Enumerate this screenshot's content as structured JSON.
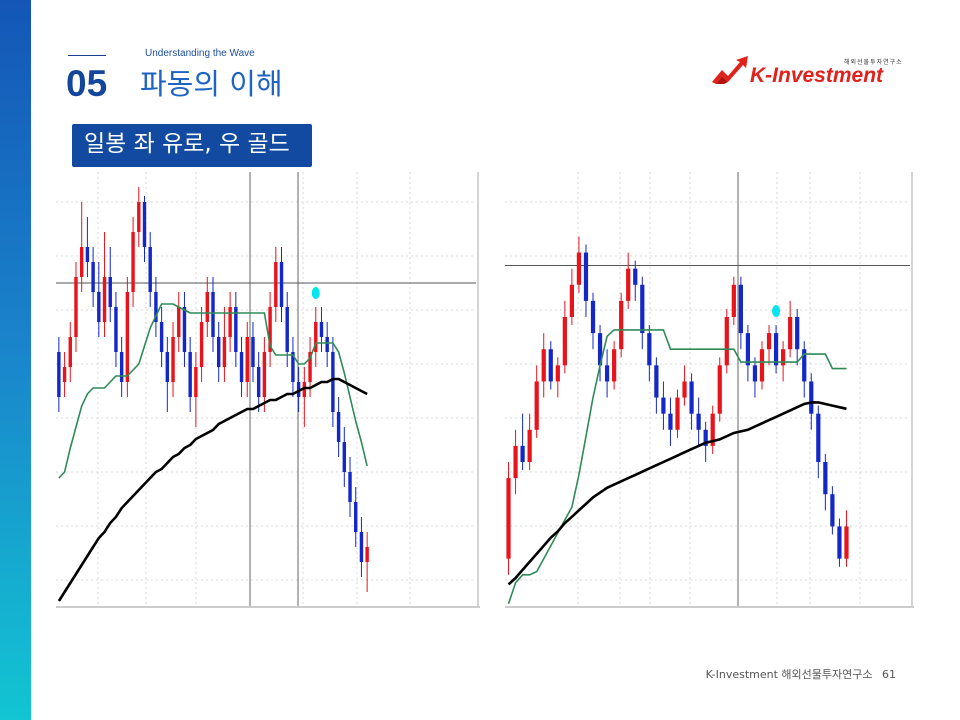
{
  "header": {
    "number": "05",
    "subtitle": "Understanding the Wave",
    "title": "파동의 이해"
  },
  "logo": {
    "tagline": "해외선물투자연구소",
    "name": "K-Investment",
    "color": "#e1211b"
  },
  "banner": {
    "text": "일봉 좌 유로, 우 골드",
    "color": "#114aa0"
  },
  "footer": {
    "org": "K-Investment 해외선물투자연구소",
    "page": "61"
  },
  "colors": {
    "bull": "#e8141c",
    "bear": "#1428c8",
    "green_line": "#2e8b57",
    "black_line": "#000000",
    "marker": "#00e5ee",
    "accent": "#114aa0"
  },
  "chart_data": [
    {
      "type": "candlestick",
      "ylim": [
        1.125,
        1.27
      ],
      "y_ticks": [
        1.26,
        1.24,
        1.22,
        1.2,
        1.18,
        1.16,
        1.14,
        1.12
      ],
      "hline": 1.233,
      "candles": [
        [
          1.21,
          1.195,
          1.215,
          1.19
        ],
        [
          1.2,
          1.205,
          1.21,
          1.195
        ],
        [
          1.205,
          1.215,
          1.22,
          1.2
        ],
        [
          1.215,
          1.235,
          1.24,
          1.21
        ],
        [
          1.235,
          1.245,
          1.26,
          1.23
        ],
        [
          1.245,
          1.24,
          1.255,
          1.235
        ],
        [
          1.24,
          1.23,
          1.245,
          1.225
        ],
        [
          1.23,
          1.22,
          1.24,
          1.215
        ],
        [
          1.22,
          1.235,
          1.25,
          1.215
        ],
        [
          1.235,
          1.225,
          1.245,
          1.22
        ],
        [
          1.225,
          1.21,
          1.23,
          1.205
        ],
        [
          1.21,
          1.2,
          1.215,
          1.195
        ],
        [
          1.2,
          1.23,
          1.235,
          1.195
        ],
        [
          1.23,
          1.25,
          1.255,
          1.225
        ],
        [
          1.25,
          1.26,
          1.265,
          1.245
        ],
        [
          1.26,
          1.245,
          1.262,
          1.24
        ],
        [
          1.245,
          1.23,
          1.25,
          1.225
        ],
        [
          1.23,
          1.22,
          1.235,
          1.215
        ],
        [
          1.22,
          1.21,
          1.225,
          1.205
        ],
        [
          1.21,
          1.2,
          1.215,
          1.19
        ],
        [
          1.2,
          1.215,
          1.22,
          1.195
        ],
        [
          1.215,
          1.225,
          1.23,
          1.21
        ],
        [
          1.225,
          1.21,
          1.23,
          1.205
        ],
        [
          1.21,
          1.195,
          1.215,
          1.19
        ],
        [
          1.195,
          1.205,
          1.21,
          1.185
        ],
        [
          1.205,
          1.22,
          1.225,
          1.2
        ],
        [
          1.22,
          1.23,
          1.235,
          1.215
        ],
        [
          1.23,
          1.215,
          1.235,
          1.21
        ],
        [
          1.215,
          1.205,
          1.22,
          1.2
        ],
        [
          1.205,
          1.215,
          1.225,
          1.2
        ],
        [
          1.215,
          1.225,
          1.23,
          1.21
        ],
        [
          1.225,
          1.21,
          1.23,
          1.205
        ],
        [
          1.21,
          1.2,
          1.215,
          1.195
        ],
        [
          1.2,
          1.215,
          1.22,
          1.195
        ],
        [
          1.215,
          1.205,
          1.22,
          1.2
        ],
        [
          1.205,
          1.195,
          1.21,
          1.19
        ],
        [
          1.195,
          1.21,
          1.215,
          1.19
        ],
        [
          1.21,
          1.225,
          1.23,
          1.205
        ],
        [
          1.225,
          1.24,
          1.245,
          1.22
        ],
        [
          1.24,
          1.225,
          1.245,
          1.22
        ],
        [
          1.225,
          1.21,
          1.23,
          1.205
        ],
        [
          1.21,
          1.2,
          1.215,
          1.195
        ],
        [
          1.2,
          1.195,
          1.205,
          1.19
        ],
        [
          1.195,
          1.2,
          1.205,
          1.185
        ],
        [
          1.2,
          1.21,
          1.215,
          1.195
        ],
        [
          1.21,
          1.22,
          1.225,
          1.205
        ],
        [
          1.22,
          1.215,
          1.225,
          1.21
        ],
        [
          1.215,
          1.21,
          1.22,
          1.205
        ],
        [
          1.21,
          1.19,
          1.215,
          1.185
        ],
        [
          1.19,
          1.18,
          1.195,
          1.175
        ],
        [
          1.18,
          1.17,
          1.185,
          1.165
        ],
        [
          1.17,
          1.16,
          1.175,
          1.155
        ],
        [
          1.16,
          1.15,
          1.165,
          1.145
        ],
        [
          1.15,
          1.14,
          1.155,
          1.135
        ],
        [
          1.14,
          1.145,
          1.15,
          1.13
        ]
      ],
      "green_line": [
        1.168,
        1.17,
        1.178,
        1.185,
        1.192,
        1.196,
        1.198,
        1.198,
        1.198,
        1.2,
        1.202,
        1.202,
        1.202,
        1.204,
        1.206,
        1.212,
        1.218,
        1.222,
        1.226,
        1.226,
        1.226,
        1.225,
        1.224,
        1.223,
        1.223,
        1.223,
        1.223,
        1.223,
        1.223,
        1.223,
        1.223,
        1.223,
        1.223,
        1.223,
        1.223,
        1.223,
        1.223,
        1.212,
        1.209,
        1.209,
        1.209,
        1.209,
        1.206,
        1.206,
        1.208,
        1.213,
        1.213,
        1.213,
        1.213,
        1.21,
        1.203,
        1.195,
        1.187,
        1.18,
        1.172
      ],
      "black_line": [
        1.127,
        1.13,
        1.133,
        1.136,
        1.139,
        1.142,
        1.145,
        1.148,
        1.15,
        1.153,
        1.155,
        1.158,
        1.16,
        1.162,
        1.164,
        1.166,
        1.168,
        1.17,
        1.171,
        1.173,
        1.175,
        1.176,
        1.178,
        1.179,
        1.181,
        1.182,
        1.183,
        1.184,
        1.186,
        1.187,
        1.188,
        1.189,
        1.19,
        1.191,
        1.191,
        1.192,
        1.193,
        1.194,
        1.194,
        1.195,
        1.196,
        1.196,
        1.197,
        1.198,
        1.198,
        1.199,
        1.2,
        1.2,
        1.201,
        1.201,
        1.2,
        1.199,
        1.198,
        1.197,
        1.196
      ]
    },
    {
      "type": "candlestick",
      "ylim": [
        1150,
        1420
      ],
      "hline": 1362,
      "candles": [
        [
          1180,
          1230,
          1240,
          1170
        ],
        [
          1230,
          1250,
          1260,
          1220
        ],
        [
          1250,
          1240,
          1270,
          1235
        ],
        [
          1240,
          1260,
          1270,
          1235
        ],
        [
          1260,
          1290,
          1300,
          1255
        ],
        [
          1290,
          1310,
          1320,
          1280
        ],
        [
          1310,
          1290,
          1315,
          1285
        ],
        [
          1290,
          1300,
          1305,
          1280
        ],
        [
          1300,
          1330,
          1340,
          1295
        ],
        [
          1330,
          1350,
          1360,
          1325
        ],
        [
          1350,
          1370,
          1380,
          1345
        ],
        [
          1370,
          1340,
          1375,
          1330
        ],
        [
          1340,
          1320,
          1345,
          1310
        ],
        [
          1320,
          1300,
          1325,
          1290
        ],
        [
          1300,
          1290,
          1310,
          1280
        ],
        [
          1290,
          1310,
          1315,
          1285
        ],
        [
          1310,
          1340,
          1345,
          1305
        ],
        [
          1340,
          1360,
          1370,
          1335
        ],
        [
          1360,
          1350,
          1365,
          1340
        ],
        [
          1350,
          1320,
          1355,
          1310
        ],
        [
          1320,
          1300,
          1325,
          1290
        ],
        [
          1300,
          1280,
          1305,
          1270
        ],
        [
          1280,
          1270,
          1290,
          1260
        ],
        [
          1270,
          1260,
          1280,
          1250
        ],
        [
          1260,
          1280,
          1285,
          1255
        ],
        [
          1280,
          1290,
          1300,
          1275
        ],
        [
          1290,
          1270,
          1295,
          1260
        ],
        [
          1270,
          1260,
          1280,
          1250
        ],
        [
          1260,
          1250,
          1265,
          1240
        ],
        [
          1250,
          1270,
          1275,
          1245
        ],
        [
          1270,
          1300,
          1305,
          1265
        ],
        [
          1300,
          1330,
          1335,
          1295
        ],
        [
          1330,
          1350,
          1355,
          1325
        ],
        [
          1350,
          1320,
          1355,
          1310
        ],
        [
          1320,
          1300,
          1325,
          1290
        ],
        [
          1300,
          1290,
          1305,
          1280
        ],
        [
          1290,
          1310,
          1315,
          1285
        ],
        [
          1310,
          1320,
          1325,
          1300
        ],
        [
          1320,
          1300,
          1325,
          1295
        ],
        [
          1300,
          1310,
          1315,
          1290
        ],
        [
          1310,
          1330,
          1340,
          1305
        ],
        [
          1330,
          1310,
          1335,
          1300
        ],
        [
          1310,
          1290,
          1315,
          1280
        ],
        [
          1290,
          1270,
          1295,
          1260
        ],
        [
          1270,
          1240,
          1275,
          1230
        ],
        [
          1240,
          1220,
          1245,
          1210
        ],
        [
          1220,
          1200,
          1225,
          1195
        ],
        [
          1200,
          1180,
          1205,
          1175
        ],
        [
          1180,
          1200,
          1210,
          1175
        ]
      ],
      "green_line": [
        1152,
        1165,
        1170,
        1170,
        1172,
        1180,
        1188,
        1196,
        1204,
        1212,
        1232,
        1256,
        1280,
        1300,
        1318,
        1322,
        1322,
        1322,
        1322,
        1322,
        1322,
        1322,
        1322,
        1310,
        1310,
        1310,
        1310,
        1310,
        1310,
        1310,
        1310,
        1310,
        1310,
        1302,
        1302,
        1302,
        1302,
        1302,
        1302,
        1302,
        1302,
        1302,
        1307,
        1307,
        1307,
        1307,
        1298,
        1298,
        1298
      ],
      "black_line": [
        1164,
        1168,
        1173,
        1178,
        1183,
        1188,
        1193,
        1197,
        1202,
        1206,
        1210,
        1214,
        1218,
        1221,
        1224,
        1226,
        1228,
        1230,
        1232,
        1234,
        1236,
        1238,
        1240,
        1242,
        1244,
        1246,
        1248,
        1250,
        1252,
        1253,
        1254,
        1256,
        1258,
        1259,
        1260,
        1262,
        1264,
        1266,
        1268,
        1270,
        1272,
        1274,
        1276,
        1277,
        1277,
        1276,
        1275,
        1274,
        1273
      ]
    }
  ]
}
